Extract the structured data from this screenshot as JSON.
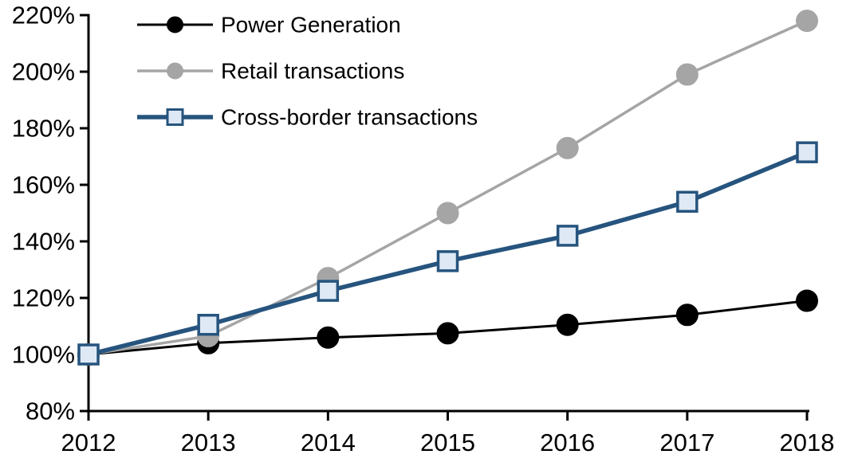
{
  "chart_data": {
    "type": "line",
    "title": "",
    "xlabel": "",
    "ylabel": "",
    "x": [
      "2012",
      "2013",
      "2014",
      "2015",
      "2016",
      "2017",
      "2018"
    ],
    "series": [
      {
        "name": "Power Generation",
        "line_color": "#000000",
        "line_width": 3,
        "marker": "circle",
        "marker_fill": "#000000",
        "marker_stroke": "#000000",
        "values": [
          100,
          104,
          106,
          107.5,
          110.5,
          114,
          119
        ]
      },
      {
        "name": "Retail transactions",
        "line_color": "#A5A5A5",
        "line_width": 3.5,
        "marker": "circle",
        "marker_fill": "#A5A5A5",
        "marker_stroke": "#A5A5A5",
        "values": [
          100,
          106.5,
          127,
          150,
          173,
          199,
          218
        ]
      },
      {
        "name": "Cross-border transactions",
        "line_color": "#26547E",
        "line_width": 5.5,
        "marker": "square",
        "marker_fill": "#DEE9F5",
        "marker_stroke": "#26547E",
        "values": [
          100,
          110.5,
          122.5,
          133,
          142,
          154,
          171.5
        ]
      }
    ],
    "ylim": [
      80,
      220
    ],
    "ytick_step": 20,
    "ytick_suffix": "%",
    "grid": false,
    "legend_position": "top-left",
    "axis_color": "#000000",
    "background": "#FFFFFF"
  }
}
